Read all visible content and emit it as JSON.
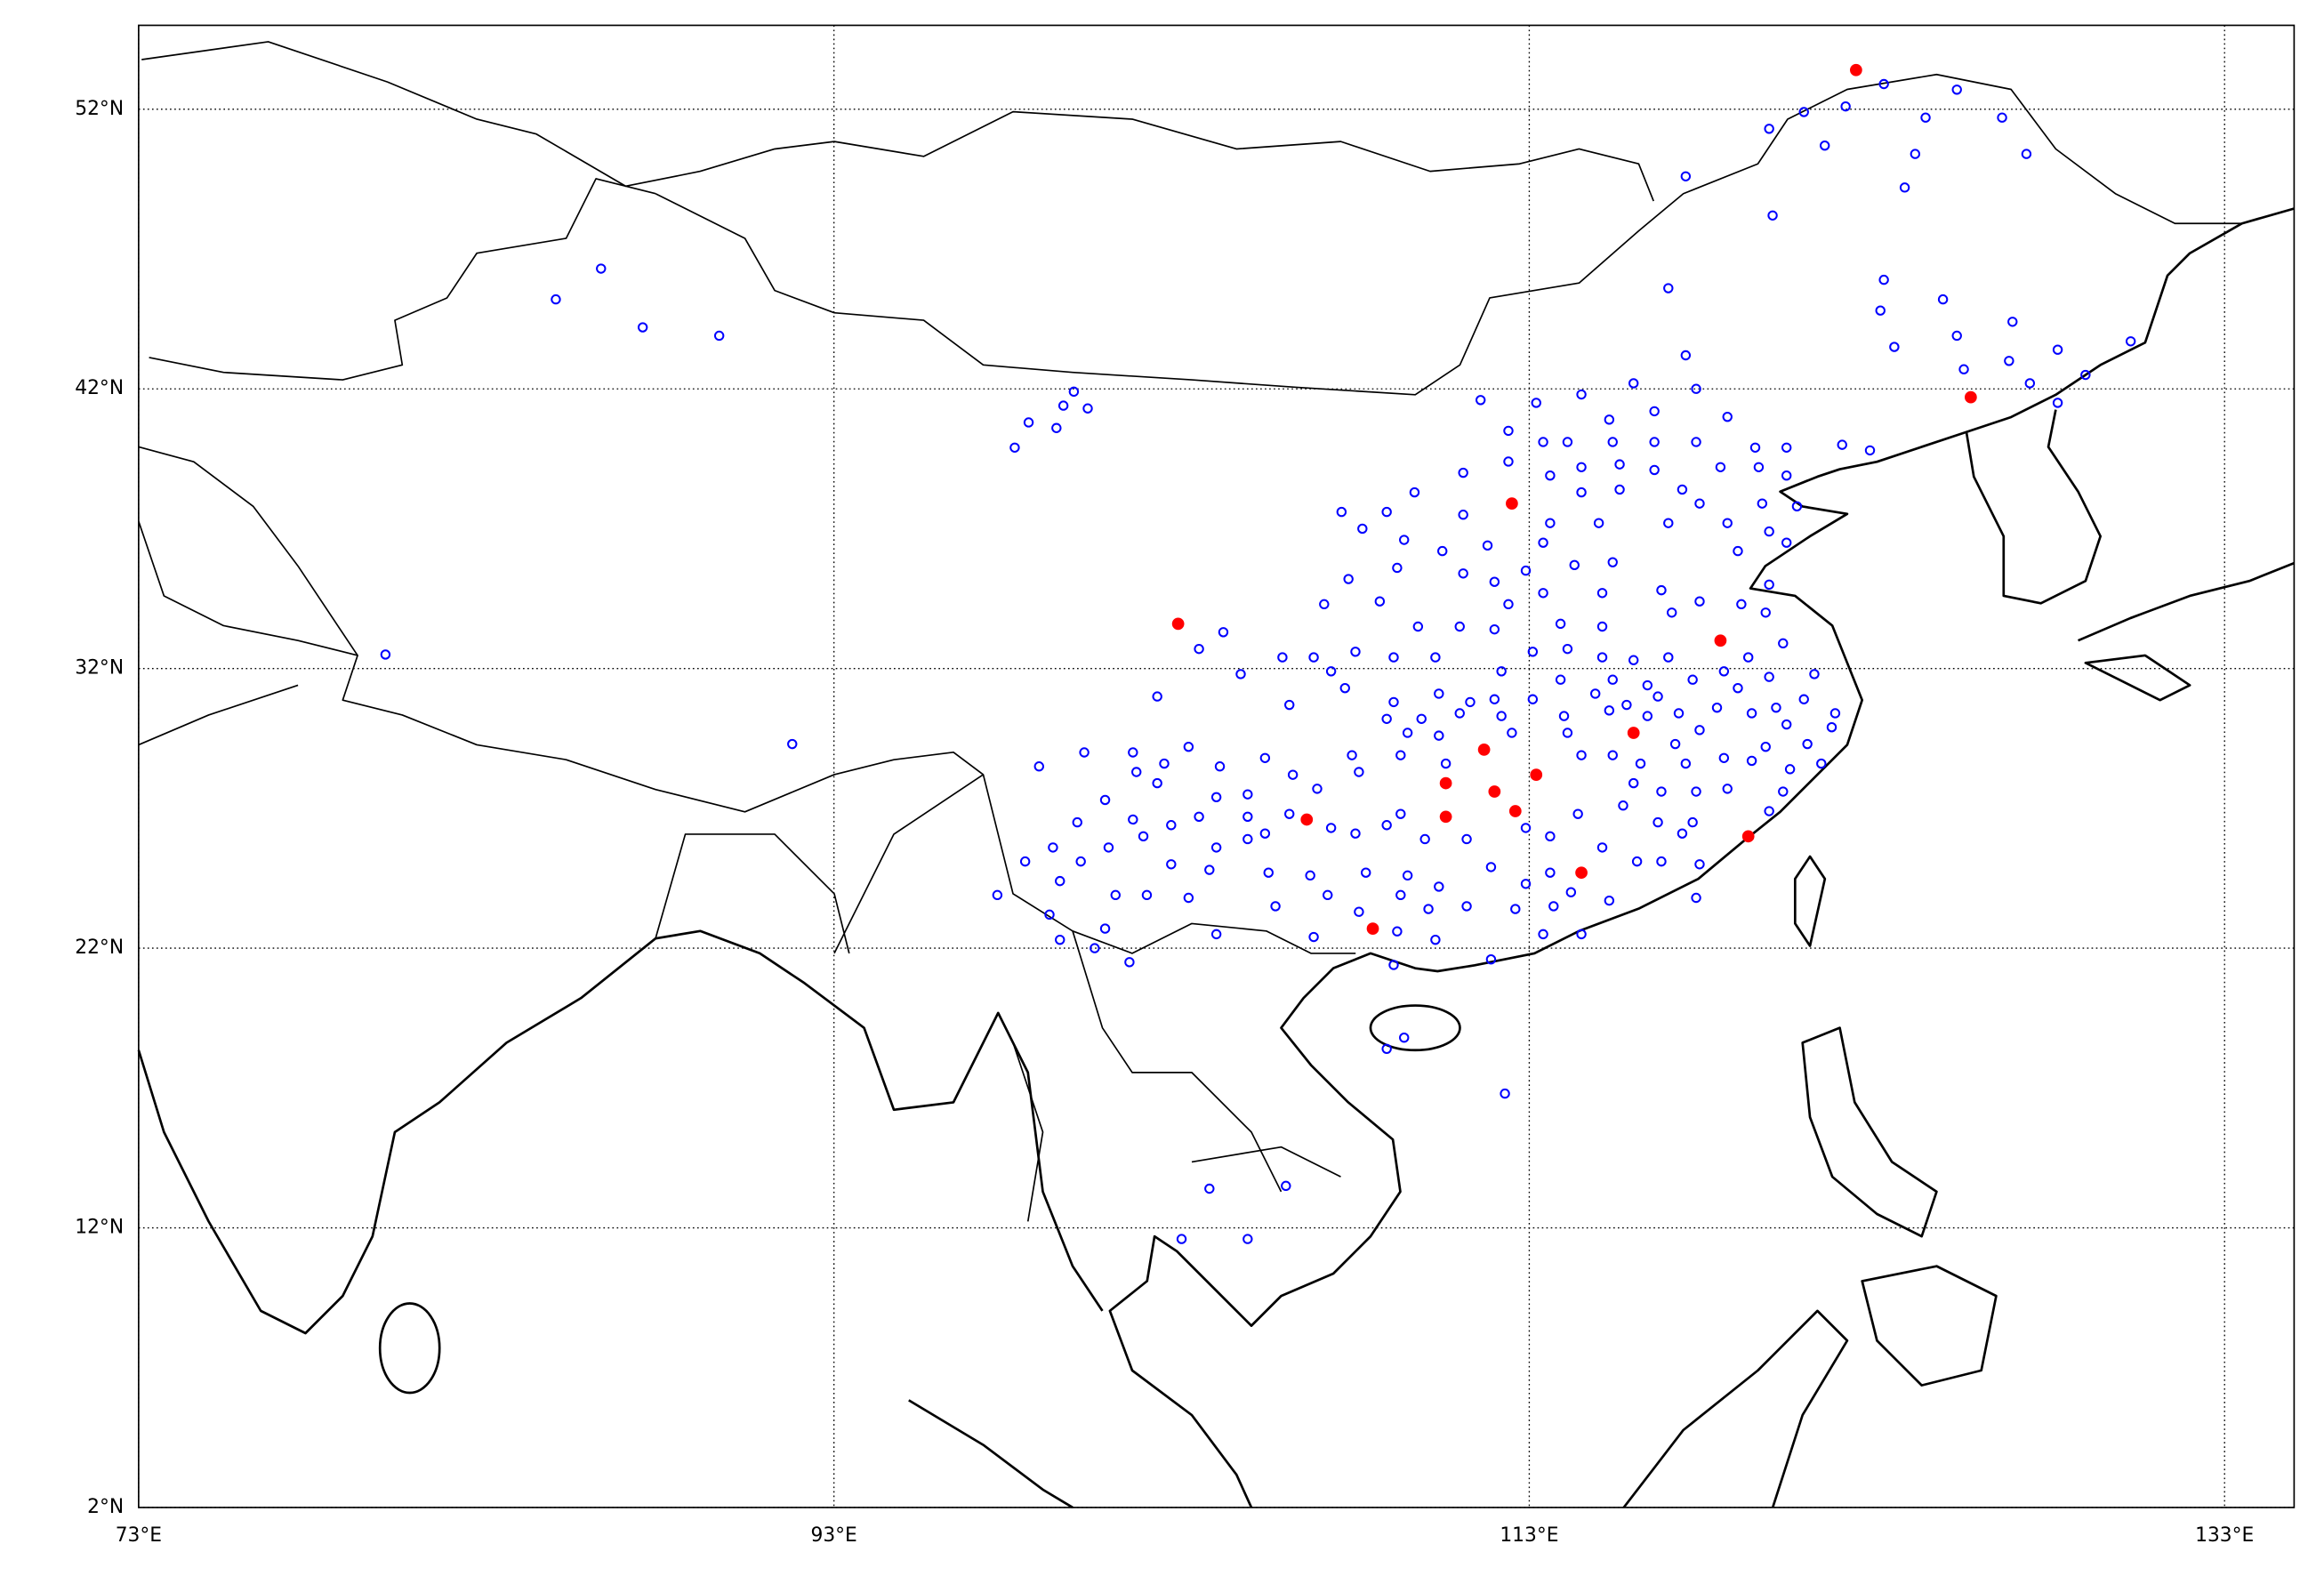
{
  "chart_data": {
    "type": "scatter",
    "xlim": [
      73,
      135
    ],
    "ylim": [
      2,
      55
    ],
    "xticks": [
      {
        "value": 73,
        "label": "73°E"
      },
      {
        "value": 93,
        "label": "93°E"
      },
      {
        "value": 113,
        "label": "113°E"
      },
      {
        "value": 133,
        "label": "133°E"
      }
    ],
    "yticks": [
      {
        "value": 2,
        "label": "2°N"
      },
      {
        "value": 12,
        "label": "12°N"
      },
      {
        "value": 22,
        "label": "22°N"
      },
      {
        "value": 32,
        "label": "32°N"
      },
      {
        "value": 42,
        "label": "42°N"
      },
      {
        "value": 52,
        "label": "52°N"
      }
    ],
    "grid": true,
    "series": [
      {
        "color": "#0000ff",
        "filled": false,
        "x": [
          123.2,
          125.3,
          122.1,
          120.9,
          124.4,
          126.6,
          119.9,
          121.5,
          124.1,
          127.3,
          117.5,
          123.8,
          120.0,
          117.0,
          123.2,
          123.1,
          124.9,
          126.9,
          125.3,
          123.5,
          128.2,
          130.3,
          117.5,
          126.8,
          125.5,
          127.4,
          129.0,
          116.0,
          117.8,
          128.2,
          86.3,
          85.0,
          87.5,
          89.7,
          80.1,
          91.8,
          99.9,
          99.6,
          100.3,
          98.6,
          99.4,
          98.2,
          111.6,
          113.2,
          114.5,
          115.3,
          116.6,
          118.7,
          112.4,
          113.4,
          114.1,
          115.4,
          116.6,
          117.8,
          119.5,
          120.4,
          122.0,
          122.8,
          112.4,
          113.6,
          114.5,
          115.6,
          116.6,
          118.5,
          119.6,
          120.4,
          111.1,
          109.7,
          114.5,
          115.6,
          117.4,
          117.9,
          119.7,
          120.7,
          107.6,
          108.9,
          111.1,
          113.6,
          115.0,
          117.0,
          118.7,
          119.9,
          108.2,
          109.4,
          113.4,
          111.8,
          110.5,
          109.2,
          111.1,
          112.9,
          114.3,
          115.4,
          119.0,
          120.4,
          107.8,
          108.7,
          112.0,
          113.4,
          115.1,
          116.8,
          117.9,
          119.9,
          107.1,
          112.4,
          103.5,
          104.2,
          119.1,
          119.8,
          109.8,
          111.0,
          112.0,
          113.9,
          115.1,
          117.1,
          105.9,
          106.8,
          108.0,
          109.1,
          110.3,
          113.1,
          114.1,
          115.1,
          116.0,
          117.0,
          119.3,
          120.3,
          104.7,
          107.3,
          112.2,
          113.9,
          115.4,
          116.4,
          117.7,
          118.6,
          119.9,
          121.2,
          110.4,
          102.3,
          106.1,
          107.7,
          109.1,
          111.3,
          112.0,
          113.1,
          114.9,
          115.8,
          116.7,
          118.4,
          119.0,
          120.1,
          120.9,
          121.8,
          108.9,
          109.9,
          111.0,
          112.2,
          114.0,
          115.3,
          116.4,
          117.3,
          117.9,
          119.4,
          120.4,
          121.7,
          109.5,
          110.4,
          112.5,
          114.1,
          117.2,
          119.8,
          121.0,
          103.2,
          102.5,
          101.6,
          100.2,
          98.9,
          104.1,
          105.4,
          106.2,
          107.9,
          109.3,
          110.6,
          114.5,
          115.4,
          116.2,
          117.5,
          118.6,
          119.4,
          120.5,
          121.4,
          101.7,
          102.3,
          100.8,
          104.0,
          104.9,
          106.9,
          108.1,
          116.0,
          116.8,
          117.8,
          118.7,
          120.3,
          101.6,
          104.9,
          100.0,
          102.7,
          103.5,
          106.1,
          107.3,
          109.3,
          112.9,
          114.4,
          115.7,
          116.7,
          117.7,
          119.9,
          99.3,
          100.9,
          101.9,
          104.0,
          104.9,
          105.4,
          108.0,
          108.9,
          110.0,
          111.2,
          113.6,
          115.1,
          116.1,
          117.4,
          98.5,
          100.1,
          102.7,
          103.8,
          105.5,
          106.7,
          108.3,
          109.5,
          111.9,
          113.6,
          116.8,
          117.9,
          99.5,
          97.7,
          101.1,
          102.0,
          103.2,
          107.2,
          109.3,
          110.4,
          112.9,
          114.2,
          117.8,
          99.2,
          100.8,
          104.0,
          105.7,
          108.1,
          110.1,
          111.2,
          112.6,
          113.7,
          115.3,
          114.5,
          99.5,
          100.5,
          101.5,
          106.8,
          109.2,
          110.3,
          113.4,
          111.9,
          109.1,
          109.4,
          108.9,
          112.3,
          103.8,
          106.0,
          104.9,
          103.0
        ],
        "values": [
          52.9,
          52.7,
          52.1,
          51.9,
          51.7,
          51.7,
          51.3,
          50.7,
          50.4,
          50.4,
          49.6,
          49.2,
          48.2,
          45.6,
          45.9,
          44.8,
          45.2,
          44.4,
          43.9,
          43.5,
          43.4,
          43.7,
          43.2,
          43.0,
          42.7,
          42.2,
          42.5,
          42.2,
          42.0,
          41.5,
          46.3,
          45.2,
          44.2,
          43.9,
          32.5,
          29.3,
          41.9,
          41.4,
          41.3,
          40.8,
          40.6,
          39.9,
          41.6,
          41.5,
          41.8,
          40.9,
          41.2,
          41.0,
          40.5,
          40.1,
          40.1,
          40.1,
          40.1,
          40.1,
          39.9,
          39.9,
          40.0,
          39.8,
          39.4,
          38.9,
          39.2,
          39.3,
          39.1,
          39.2,
          39.2,
          38.9,
          39.0,
          38.3,
          38.3,
          38.4,
          38.4,
          37.9,
          37.9,
          37.8,
          37.6,
          37.6,
          37.5,
          37.2,
          37.2,
          37.2,
          37.2,
          36.9,
          37.0,
          36.6,
          36.5,
          36.4,
          36.2,
          35.6,
          35.4,
          35.5,
          35.7,
          35.8,
          36.2,
          36.5,
          35.2,
          34.4,
          35.1,
          34.7,
          34.7,
          34.8,
          34.4,
          35.0,
          34.3,
          34.3,
          32.7,
          33.3,
          34.3,
          34.0,
          33.5,
          33.5,
          33.4,
          33.6,
          33.5,
          34.0,
          32.4,
          32.4,
          32.6,
          32.4,
          32.4,
          32.6,
          32.7,
          32.4,
          32.3,
          32.4,
          32.4,
          32.9,
          31.8,
          31.9,
          31.9,
          31.6,
          31.6,
          31.4,
          31.6,
          31.9,
          31.7,
          31.8,
          31.1,
          31.0,
          30.7,
          31.3,
          30.8,
          30.8,
          30.9,
          30.9,
          31.1,
          30.7,
          31.0,
          30.6,
          31.3,
          30.6,
          30.9,
          30.4,
          30.2,
          30.2,
          30.4,
          30.3,
          30.3,
          30.5,
          30.3,
          30.4,
          29.8,
          30.4,
          30.0,
          29.9,
          29.7,
          29.6,
          29.7,
          29.7,
          29.3,
          29.2,
          29.3,
          29.2,
          28.6,
          29.0,
          29.0,
          28.5,
          28.5,
          28.8,
          28.2,
          28.9,
          28.9,
          28.6,
          28.9,
          28.9,
          28.6,
          28.6,
          28.8,
          28.7,
          28.4,
          28.6,
          28.3,
          27.9,
          27.3,
          27.4,
          27.5,
          27.7,
          28.3,
          27.9,
          27.6,
          27.6,
          27.7,
          27.6,
          26.6,
          26.7,
          26.5,
          26.4,
          26.7,
          26.8,
          26.3,
          26.8,
          26.3,
          26.8,
          27.1,
          26.5,
          26.5,
          26.9,
          25.6,
          25.6,
          26.0,
          25.6,
          25.9,
          26.1,
          26.1,
          26.4,
          25.9,
          25.9,
          26.0,
          25.6,
          25.1,
          26.1,
          25.1,
          25.1,
          25.0,
          24.8,
          24.7,
          24.6,
          24.7,
          24.6,
          24.9,
          24.7,
          25.1,
          25.0,
          24.4,
          23.9,
          23.9,
          23.9,
          23.8,
          23.9,
          23.9,
          24.2,
          24.3,
          24.0,
          23.8,
          23.2,
          22.7,
          22.5,
          23.5,
          23.3,
          23.4,
          23.5,
          23.4,
          23.5,
          23.7,
          22.5,
          22.3,
          22.0,
          21.5,
          22.4,
          22.6,
          22.3,
          22.5,
          21.6,
          21.4,
          18.8,
          18.4,
          16.8,
          13.4,
          13.5,
          11.6,
          11.6
        ]
      },
      {
        "color": "#ff0000",
        "filled": true,
        "x": [
          122.4,
          125.7,
          112.5,
          102.9,
          118.5,
          116.0,
          111.7,
          113.2,
          110.6,
          112.0,
          110.6,
          112.6,
          106.6,
          119.3,
          114.5,
          108.5
        ],
        "values": [
          53.4,
          41.7,
          37.9,
          33.6,
          33.0,
          29.7,
          29.1,
          28.2,
          27.9,
          27.6,
          26.7,
          26.9,
          26.6,
          26.0,
          24.7,
          22.7
        ]
      }
    ]
  }
}
